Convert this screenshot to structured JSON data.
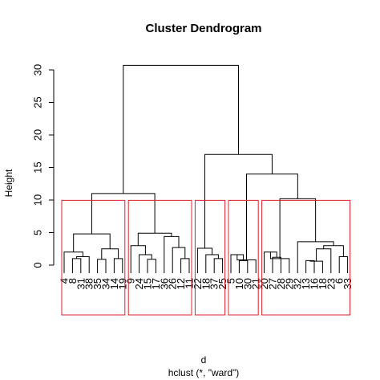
{
  "chart_data": {
    "type": "dendrogram",
    "title": "Cluster Dendrogram",
    "ylabel": "Height",
    "xlabel": "d",
    "subtitle": "hclust (*, \"ward\")",
    "ylim": [
      0,
      30
    ],
    "yticks": [
      0,
      5,
      10,
      15,
      20,
      25,
      30
    ],
    "grid": false,
    "leaf_order": [
      "4",
      "8",
      "31",
      "38",
      "35",
      "34",
      "14",
      "19",
      "9",
      "24",
      "15",
      "17",
      "36",
      "26",
      "12",
      "11",
      "22",
      "18",
      "37",
      "25",
      "5",
      "10",
      "30",
      "21",
      "20",
      "27",
      "28",
      "29",
      "32",
      "13",
      "16",
      "18",
      "23",
      "6",
      "33"
    ],
    "leaves": [
      {
        "label": "4",
        "height": 0
      },
      {
        "label": "8",
        "height": 0
      },
      {
        "label": "31",
        "height": 0
      },
      {
        "label": "38",
        "height": 0
      },
      {
        "label": "35",
        "height": 0
      },
      {
        "label": "34",
        "height": 0
      },
      {
        "label": "14",
        "height": 0
      },
      {
        "label": "19",
        "height": 0
      },
      {
        "label": "9",
        "height": 0
      },
      {
        "label": "24",
        "height": 0
      },
      {
        "label": "15",
        "height": 0
      },
      {
        "label": "17",
        "height": 0
      },
      {
        "label": "36",
        "height": 0
      },
      {
        "label": "26",
        "height": 0
      },
      {
        "label": "12",
        "height": 0
      },
      {
        "label": "11",
        "height": 0
      },
      {
        "label": "22",
        "height": 0
      },
      {
        "label": "18",
        "height": 0
      },
      {
        "label": "37",
        "height": 0
      },
      {
        "label": "25",
        "height": 0
      },
      {
        "label": "5",
        "height": 0
      },
      {
        "label": "10",
        "height": 0
      },
      {
        "label": "30",
        "height": 0
      },
      {
        "label": "21",
        "height": 0
      },
      {
        "label": "20",
        "height": 0
      },
      {
        "label": "27",
        "height": 0
      },
      {
        "label": "28",
        "height": 0
      },
      {
        "label": "29",
        "height": 0
      },
      {
        "label": "32",
        "height": 0
      },
      {
        "label": "13",
        "height": 0
      },
      {
        "label": "16",
        "height": 0
      },
      {
        "label": "18",
        "height": 0
      },
      {
        "label": "23",
        "height": 0
      },
      {
        "label": "6",
        "height": 0
      },
      {
        "label": "33",
        "height": 0
      }
    ],
    "merges": [
      {
        "left": 1,
        "right": 2,
        "height": 1.0
      },
      {
        "left": 35,
        "right": 3,
        "height": 1.3
      },
      {
        "left": 4,
        "right": 5,
        "height": 0.9
      },
      {
        "left": 0,
        "right": 36,
        "height": 2.0
      },
      {
        "left": 6,
        "right": 7,
        "height": 1.0
      },
      {
        "left": 37,
        "right": 39,
        "height": 2.5
      },
      {
        "left": 38,
        "right": 40,
        "height": 4.8
      },
      {
        "left": 10,
        "right": 11,
        "height": 0.9
      },
      {
        "left": 9,
        "right": 42,
        "height": 1.6
      },
      {
        "left": 8,
        "right": 43,
        "height": 3.0
      },
      {
        "left": 14,
        "right": 15,
        "height": 1.0
      },
      {
        "left": 13,
        "right": 45,
        "height": 2.7
      },
      {
        "left": 12,
        "right": 46,
        "height": 4.4
      },
      {
        "left": 44,
        "right": 47,
        "height": 4.9
      },
      {
        "left": 41,
        "right": 48,
        "height": 11.0
      },
      {
        "left": 18,
        "right": 19,
        "height": 1.0
      },
      {
        "left": 17,
        "right": 50,
        "height": 1.6
      },
      {
        "left": 16,
        "right": 51,
        "height": 2.6
      },
      {
        "left": 21,
        "right": 22,
        "height": 0.7
      },
      {
        "left": 20,
        "right": 53,
        "height": 1.6
      },
      {
        "left": 54,
        "right": 23,
        "height": 0.8
      },
      {
        "left": 25,
        "right": 26,
        "height": 1.2
      },
      {
        "left": 24,
        "right": 56,
        "height": 2.0
      },
      {
        "left": 57,
        "right": 27,
        "height": 1.0
      },
      {
        "left": 29,
        "right": 30,
        "height": 0.7
      },
      {
        "left": 59,
        "right": 31,
        "height": 0.6
      },
      {
        "left": 60,
        "right": 32,
        "height": 2.5
      },
      {
        "left": 33,
        "right": 34,
        "height": 1.3
      },
      {
        "left": 61,
        "right": 62,
        "height": 3.0
      },
      {
        "left": 28,
        "right": 63,
        "height": 3.6
      },
      {
        "left": 58,
        "right": 64,
        "height": 10.2
      },
      {
        "left": 55,
        "right": 65,
        "height": 14.0
      },
      {
        "left": 52,
        "right": 66,
        "height": 17.0
      },
      {
        "left": 49,
        "right": 67,
        "height": 30.7
      }
    ],
    "clusters_k": 5,
    "cluster_box_color": "#e0202c",
    "line_color": "#000000"
  }
}
